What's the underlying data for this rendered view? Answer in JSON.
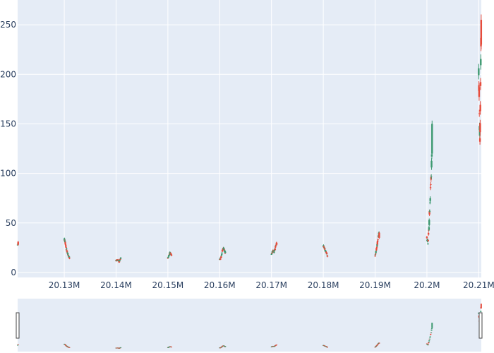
{
  "chart_data": {
    "type": "candlestick",
    "title": "",
    "xlabel": "",
    "ylabel": "",
    "xlim": [
      20121000,
      20210500
    ],
    "ylim": [
      -5,
      275
    ],
    "x_ticks": [
      {
        "value": 20130000,
        "label": "20.13M"
      },
      {
        "value": 20140000,
        "label": "20.14M"
      },
      {
        "value": 20150000,
        "label": "20.15M"
      },
      {
        "value": 20160000,
        "label": "20.16M"
      },
      {
        "value": 20170000,
        "label": "20.17M"
      },
      {
        "value": 20180000,
        "label": "20.18M"
      },
      {
        "value": 20190000,
        "label": "20.19M"
      },
      {
        "value": 20200000,
        "label": "20.2M"
      },
      {
        "value": 20210000,
        "label": "20.21M"
      }
    ],
    "y_ticks": [
      0,
      50,
      100,
      150,
      200,
      250
    ],
    "grid": true,
    "legend": "none",
    "range_slider": true,
    "increasing_color": "#3D9970",
    "decreasing_color": "#E74C3C",
    "plot_bg": "#e5ecf6",
    "anchors": [
      [
        20121000,
        28,
        32
      ],
      [
        20121100,
        31,
        28
      ],
      [
        20130000,
        34,
        30
      ],
      [
        20130200,
        30,
        24
      ],
      [
        20130400,
        24,
        20
      ],
      [
        20130600,
        20,
        17
      ],
      [
        20130800,
        17,
        15
      ],
      [
        20131000,
        15,
        14
      ],
      [
        20140000,
        12,
        13
      ],
      [
        20140300,
        13,
        11
      ],
      [
        20140600,
        11,
        14
      ],
      [
        20140900,
        14,
        15
      ],
      [
        20150000,
        15,
        17
      ],
      [
        20150200,
        17,
        20
      ],
      [
        20150400,
        20,
        18
      ],
      [
        20150700,
        18,
        17
      ],
      [
        20160000,
        13,
        16
      ],
      [
        20160300,
        16,
        22
      ],
      [
        20160500,
        22,
        25
      ],
      [
        20160700,
        25,
        20
      ],
      [
        20161100,
        20,
        21
      ],
      [
        20170000,
        19,
        22
      ],
      [
        20170300,
        22,
        20
      ],
      [
        20170500,
        20,
        26
      ],
      [
        20170800,
        26,
        30
      ],
      [
        20171000,
        30,
        28
      ],
      [
        20180000,
        27,
        25
      ],
      [
        20180200,
        25,
        22
      ],
      [
        20180400,
        22,
        20
      ],
      [
        20180600,
        20,
        17
      ],
      [
        20180800,
        17,
        16
      ],
      [
        20190000,
        17,
        22
      ],
      [
        20190200,
        22,
        28
      ],
      [
        20190400,
        28,
        36
      ],
      [
        20190600,
        36,
        40
      ],
      [
        20190800,
        40,
        35
      ],
      [
        20200000,
        35,
        30
      ],
      [
        20200200,
        30,
        45
      ],
      [
        20200400,
        45,
        70
      ],
      [
        20200600,
        70,
        95
      ],
      [
        20200800,
        95,
        120
      ],
      [
        20201000,
        120,
        150
      ],
      [
        20210000,
        200,
        180
      ],
      [
        20210080,
        180,
        150
      ],
      [
        20210160,
        150,
        130
      ],
      [
        20210240,
        130,
        170
      ],
      [
        20210320,
        170,
        215
      ],
      [
        20210400,
        215,
        255
      ],
      [
        20210480,
        255,
        230
      ]
    ],
    "minute_step": 50
  }
}
